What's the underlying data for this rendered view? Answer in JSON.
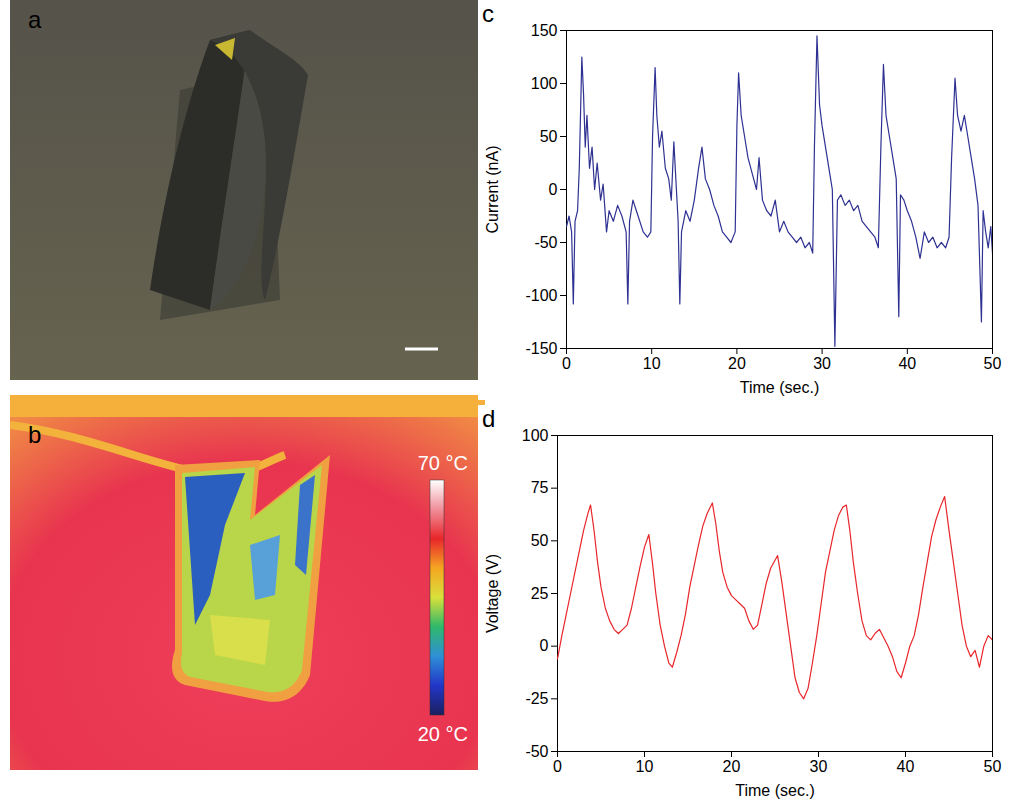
{
  "chart_data": [
    {
      "type": "image",
      "panel": "a"
    },
    {
      "type": "image",
      "panel": "b",
      "colorbar": {
        "range": [
          20,
          70
        ],
        "ticks": [
          {
            "value": 20,
            "label": "20 °C"
          },
          {
            "value": 70,
            "label": "70 °C"
          }
        ]
      }
    },
    {
      "type": "line",
      "panel": "c",
      "xlabel": "Time (sec.)",
      "ylabel": "Current (nA)",
      "color": "#2e3192",
      "xlim": [
        0,
        50
      ],
      "ylim": [
        -150,
        150
      ],
      "xticks": [
        0,
        10,
        20,
        30,
        40,
        50
      ],
      "yticks": [
        -150,
        -100,
        -50,
        0,
        50,
        100,
        150
      ],
      "x": [
        0,
        0.3,
        0.6,
        0.8,
        1.0,
        1.3,
        1.5,
        1.8,
        2.0,
        2.2,
        2.4,
        2.7,
        3.0,
        3.3,
        3.6,
        4.0,
        4.3,
        4.7,
        5.0,
        5.5,
        6.0,
        6.5,
        7.0,
        7.2,
        7.4,
        7.8,
        8.2,
        8.6,
        9.0,
        9.5,
        9.9,
        10.1,
        10.4,
        10.6,
        10.9,
        11.2,
        11.6,
        12.0,
        12.3,
        12.6,
        12.9,
        13.1,
        13.3,
        13.5,
        14.0,
        14.5,
        15.0,
        15.5,
        15.9,
        16.3,
        16.8,
        17.3,
        17.8,
        18.3,
        18.8,
        19.3,
        19.8,
        20.0,
        20.2,
        20.5,
        20.9,
        21.3,
        21.8,
        22.3,
        22.6,
        23.0,
        23.5,
        24.0,
        24.5,
        25.0,
        25.5,
        26.0,
        26.5,
        27.0,
        27.5,
        28.0,
        28.5,
        28.9,
        29.1,
        29.4,
        29.7,
        30.0,
        30.4,
        30.8,
        31.2,
        31.5,
        31.8,
        32.2,
        32.7,
        33.2,
        33.7,
        34.2,
        34.7,
        35.2,
        35.7,
        36.2,
        36.6,
        36.9,
        37.2,
        37.5,
        37.9,
        38.3,
        38.7,
        39.0,
        39.2,
        39.6,
        40.0,
        40.5,
        41.0,
        41.5,
        42.0,
        42.5,
        43.0,
        43.5,
        44.0,
        44.5,
        44.9,
        45.2,
        45.6,
        45.9,
        46.3,
        46.7,
        47.1,
        47.5,
        47.9,
        48.3,
        48.7,
        48.9,
        49.2,
        49.5,
        49.8,
        50
      ],
      "values": [
        -35,
        -25,
        -40,
        -108,
        -30,
        -20,
        20,
        125,
        90,
        40,
        70,
        20,
        40,
        0,
        25,
        -10,
        5,
        -40,
        -20,
        -30,
        -15,
        -25,
        -40,
        -108,
        -30,
        -10,
        -20,
        -30,
        -40,
        -45,
        -40,
        50,
        115,
        70,
        40,
        55,
        20,
        10,
        -10,
        45,
        0,
        -30,
        -108,
        -40,
        -20,
        -30,
        -10,
        20,
        40,
        10,
        0,
        -15,
        -25,
        -40,
        -45,
        -50,
        -40,
        60,
        110,
        70,
        50,
        30,
        15,
        0,
        30,
        -10,
        -20,
        -25,
        -10,
        -40,
        -30,
        -40,
        -45,
        -50,
        -45,
        -55,
        -50,
        -60,
        40,
        145,
        80,
        60,
        40,
        20,
        0,
        -148,
        -10,
        -5,
        -15,
        -10,
        -20,
        -15,
        -30,
        -35,
        -40,
        -45,
        -55,
        40,
        118,
        70,
        50,
        30,
        10,
        -120,
        -5,
        -10,
        -20,
        -30,
        -45,
        -65,
        -40,
        -50,
        -45,
        -55,
        -50,
        -55,
        -45,
        30,
        105,
        70,
        55,
        70,
        50,
        30,
        10,
        -15,
        -125,
        -20,
        -40,
        -55,
        -35,
        -60
      ]
    },
    {
      "type": "line",
      "panel": "d",
      "xlabel": "Time (sec.)",
      "ylabel": "Voltage (V)",
      "color": "#e8262a",
      "xlim": [
        0,
        50
      ],
      "ylim": [
        -50,
        100
      ],
      "xticks": [
        0,
        10,
        20,
        30,
        40,
        50
      ],
      "yticks": [
        -50,
        -25,
        0,
        25,
        50,
        75,
        100
      ],
      "x": [
        0,
        0.5,
        1,
        1.5,
        2,
        2.5,
        3,
        3.5,
        3.8,
        4.2,
        4.6,
        5,
        5.5,
        6,
        6.5,
        7,
        7.5,
        8,
        8.5,
        9,
        9.5,
        10,
        10.5,
        10.9,
        11.3,
        11.8,
        12.3,
        12.8,
        13.2,
        13.7,
        14.2,
        14.7,
        15.2,
        15.7,
        16.2,
        16.7,
        17.2,
        17.8,
        18.2,
        18.6,
        19,
        19.5,
        20,
        20.5,
        21,
        21.5,
        22,
        22.5,
        23,
        23.5,
        24,
        24.5,
        25.3,
        25.8,
        26.3,
        26.8,
        27.3,
        27.8,
        28.3,
        28.8,
        29.3,
        29.8,
        30.3,
        30.8,
        31.3,
        31.8,
        32.3,
        32.8,
        33.2,
        33.6,
        34,
        34.5,
        35,
        35.5,
        36,
        36.5,
        37,
        37.5,
        38,
        38.5,
        39,
        39.5,
        40,
        40.5,
        41,
        41.5,
        42,
        42.5,
        43,
        43.5,
        44,
        44.5,
        45,
        45.5,
        46,
        46.5,
        47,
        47.5,
        48,
        48.5,
        49,
        49.5,
        50
      ],
      "values": [
        -6,
        5,
        15,
        25,
        35,
        45,
        55,
        63,
        67,
        55,
        40,
        28,
        18,
        12,
        8,
        6,
        8,
        10,
        18,
        28,
        38,
        47,
        53,
        40,
        25,
        10,
        0,
        -8,
        -10,
        -3,
        5,
        15,
        28,
        38,
        48,
        57,
        63,
        68,
        58,
        45,
        35,
        28,
        24,
        22,
        20,
        18,
        12,
        8,
        10,
        20,
        30,
        37,
        43,
        30,
        15,
        0,
        -15,
        -22,
        -25,
        -20,
        -8,
        5,
        20,
        35,
        45,
        55,
        62,
        66,
        67,
        55,
        40,
        25,
        12,
        5,
        3,
        6,
        8,
        4,
        0,
        -5,
        -12,
        -15,
        -8,
        0,
        5,
        15,
        28,
        40,
        52,
        60,
        66,
        71,
        55,
        40,
        25,
        10,
        0,
        -5,
        -2,
        -10,
        0,
        5,
        3
      ]
    }
  ]
}
